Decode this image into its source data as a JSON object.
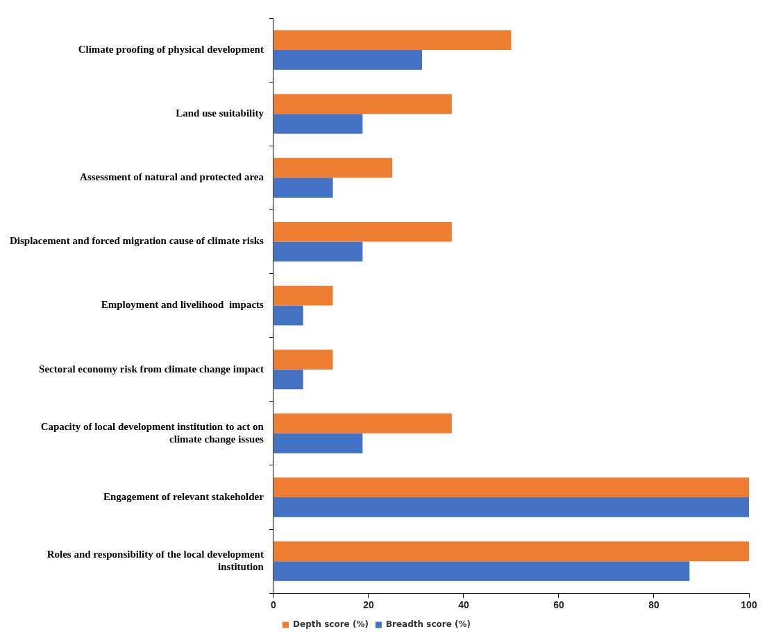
{
  "chart_data": {
    "type": "bar",
    "orientation": "horizontal",
    "categories": [
      "Climate proofing of physical development",
      "Land use suitability",
      "Assessment of natural and protected area",
      "Displacement and forced migration cause of climate risks",
      "Employment and livelihood  impacts",
      "Sectoral economy risk from climate change impact",
      "Capacity of local development institution to act on climate change issues",
      "Engagement of relevant stakeholder",
      "Roles and responsibility of the local development institution"
    ],
    "series": [
      {
        "name": "Depth score (%)",
        "color": "#ed7d31",
        "values": [
          50,
          37.5,
          25,
          37.5,
          12.5,
          12.5,
          37.5,
          100,
          100
        ]
      },
      {
        "name": "Breadth score (%)",
        "color": "#4472c4",
        "values": [
          31.25,
          18.75,
          12.5,
          18.75,
          6.25,
          6.25,
          18.75,
          100,
          87.5
        ]
      }
    ],
    "xlim": [
      0,
      100
    ],
    "xticks": [
      0,
      20,
      40,
      60,
      80,
      100
    ],
    "grid": false,
    "legend": "bottom"
  }
}
